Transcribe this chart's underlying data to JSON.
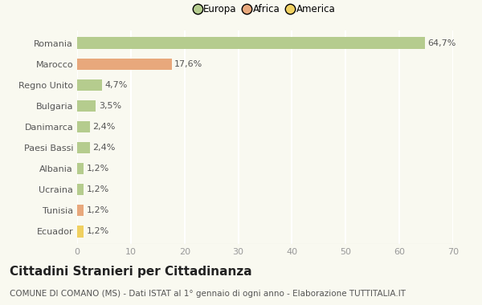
{
  "categories": [
    "Romania",
    "Marocco",
    "Regno Unito",
    "Bulgaria",
    "Danimarca",
    "Paesi Bassi",
    "Albania",
    "Ucraina",
    "Tunisia",
    "Ecuador"
  ],
  "values": [
    64.7,
    17.6,
    4.7,
    3.5,
    2.4,
    2.4,
    1.2,
    1.2,
    1.2,
    1.2
  ],
  "labels": [
    "64,7%",
    "17,6%",
    "4,7%",
    "3,5%",
    "2,4%",
    "2,4%",
    "1,2%",
    "1,2%",
    "1,2%",
    "1,2%"
  ],
  "colors": [
    "#b5cc8e",
    "#e8a87c",
    "#b5cc8e",
    "#b5cc8e",
    "#b5cc8e",
    "#b5cc8e",
    "#b5cc8e",
    "#b5cc8e",
    "#e8a87c",
    "#f0d060"
  ],
  "legend_labels": [
    "Europa",
    "Africa",
    "America"
  ],
  "legend_colors": [
    "#b5cc8e",
    "#e8a87c",
    "#f0d060"
  ],
  "title": "Cittadini Stranieri per Cittadinanza",
  "subtitle": "COMUNE DI COMANO (MS) - Dati ISTAT al 1° gennaio di ogni anno - Elaborazione TUTTITALIA.IT",
  "xlim": [
    0,
    70
  ],
  "xticks": [
    0,
    10,
    20,
    30,
    40,
    50,
    60,
    70
  ],
  "background_color": "#f9f9f0",
  "grid_color": "#ffffff",
  "title_fontsize": 11,
  "subtitle_fontsize": 7.5,
  "label_fontsize": 8,
  "tick_fontsize": 8,
  "bar_height": 0.55
}
